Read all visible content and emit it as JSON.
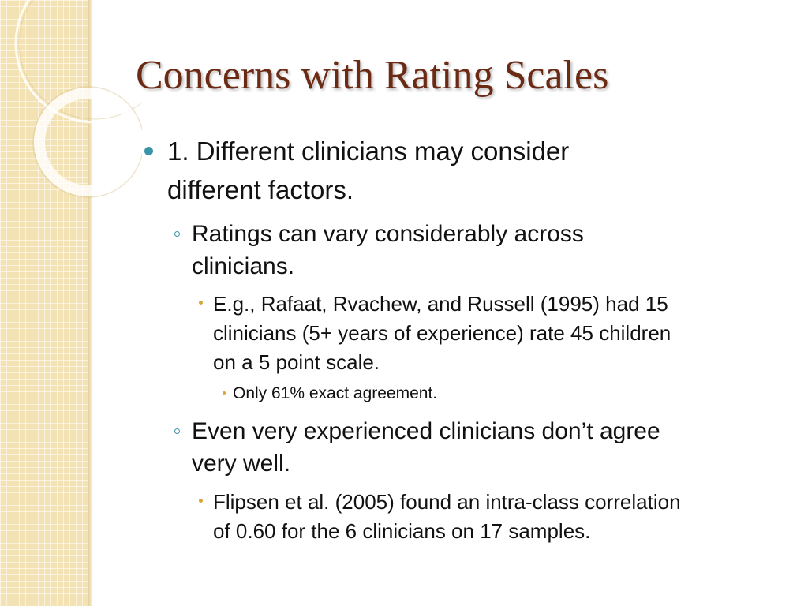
{
  "slide": {
    "title": "Concerns with Rating Scales",
    "colors": {
      "title": "#6b2a14",
      "bullet_primary": "#3a94a8",
      "bullet_secondary": "#d8a53a",
      "sidebar": "#f3e2b3"
    },
    "bullets": [
      {
        "level": 1,
        "lines": [
          "1.  Different clinicians may consider",
          "different factors."
        ]
      },
      {
        "level": 2,
        "lines": [
          "Ratings can vary considerably across",
          "clinicians."
        ]
      },
      {
        "level": 3,
        "lines": [
          "E.g., Rafaat, Rvachew, and Russell (1995) had 15",
          "clinicians (5+ years of experience) rate 45 children",
          "on a 5 point scale."
        ]
      },
      {
        "level": 4,
        "lines": [
          "Only 61% exact agreement."
        ]
      },
      {
        "level": 2,
        "lines": [
          "Even very experienced clinicians don’t agree",
          "very well."
        ]
      },
      {
        "level": 3,
        "lines": [
          "Flipsen et al. (2005) found an intra-class correlation",
          "of 0.60 for the 6 clinicians on 17 samples."
        ]
      }
    ]
  }
}
